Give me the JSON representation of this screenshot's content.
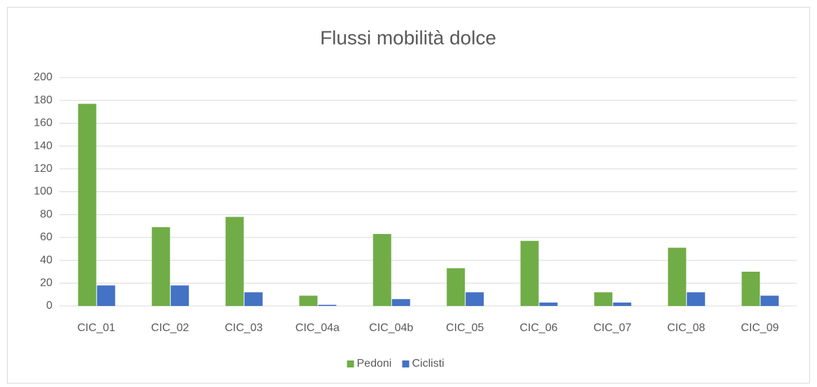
{
  "chart_data": {
    "type": "bar",
    "title": "Flussi mobilità dolce",
    "categories": [
      "CIC_01",
      "CIC_02",
      "CIC_03",
      "CIC_04a",
      "CIC_04b",
      "CIC_05",
      "CIC_06",
      "CIC_07",
      "CIC_08",
      "CIC_09"
    ],
    "series": [
      {
        "name": "Pedoni",
        "color": "#70ad47",
        "values": [
          177,
          69,
          78,
          9,
          63,
          33,
          57,
          12,
          51,
          30
        ]
      },
      {
        "name": "Ciclisti",
        "color": "#4472c4",
        "values": [
          18,
          18,
          12,
          1,
          6,
          12,
          3,
          3,
          12,
          9
        ]
      }
    ],
    "ylim": [
      0,
      200
    ],
    "yticks": [
      0,
      20,
      40,
      60,
      80,
      100,
      120,
      140,
      160,
      180,
      200
    ],
    "grid": true,
    "legend": "bottom"
  }
}
